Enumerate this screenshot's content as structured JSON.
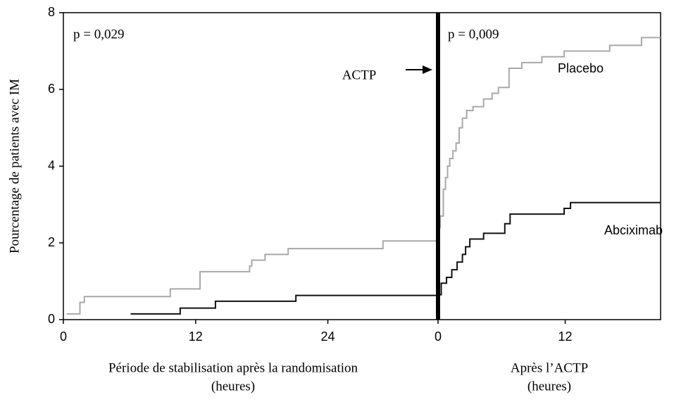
{
  "chart_data": [
    {
      "type": "line",
      "step": true,
      "annotation": "p = 0,029",
      "arrow_label": "ACTP",
      "y_label": "Pourcentage de patients avec IM",
      "x_label": [
        "Période de stabilisation après la randomisation",
        "(heures)"
      ],
      "xlim": [
        0,
        34
      ],
      "xticks": [
        0,
        12,
        24
      ],
      "ylim": [
        0,
        8
      ],
      "yticks": [
        0,
        2,
        4,
        6,
        8
      ],
      "series": [
        {
          "color": "#a8a8a8",
          "x": [
            0.3,
            1.5,
            1.9,
            9.7,
            12.4,
            16.9,
            17.1,
            18.3,
            20.4,
            29,
            34
          ],
          "values": [
            0.15,
            0.45,
            0.6,
            0.8,
            1.25,
            1.4,
            1.55,
            1.7,
            1.85,
            2.05,
            2.05
          ]
        },
        {
          "color": "#111111",
          "x": [
            6.1,
            10.6,
            13.8,
            21.1,
            34
          ],
          "values": [
            0.15,
            0.3,
            0.48,
            0.63,
            0.63
          ]
        }
      ]
    },
    {
      "type": "line",
      "step": true,
      "annotation": "p = 0,009",
      "x_label": [
        "Après l’ACTP",
        "(heures)"
      ],
      "xlim": [
        0,
        21
      ],
      "xticks": [
        0,
        12
      ],
      "ylim": [
        0,
        8
      ],
      "series": [
        {
          "name": "Placebo",
          "color": "#a8a8a8",
          "x": [
            0,
            0.2,
            0.5,
            0.7,
            0.9,
            1.1,
            1.4,
            1.7,
            2.0,
            2.3,
            2.7,
            3.3,
            4.3,
            5.1,
            5.7,
            6.7,
            7.9,
            9.8,
            11.9,
            16.2,
            19.2,
            21
          ],
          "values": [
            2.4,
            2.7,
            3.4,
            3.7,
            4.0,
            4.2,
            4.4,
            4.6,
            5.0,
            5.25,
            5.45,
            5.55,
            5.75,
            5.9,
            6.05,
            6.55,
            6.7,
            6.85,
            7.0,
            7.15,
            7.35,
            7.35
          ]
        },
        {
          "name": "Abciximab",
          "color": "#111111",
          "x": [
            0,
            0.3,
            0.8,
            1.3,
            1.8,
            2.3,
            2.6,
            3,
            4.3,
            6.3,
            6.8,
            11.9,
            12.5,
            21
          ],
          "values": [
            0.65,
            0.95,
            1.1,
            1.3,
            1.5,
            1.7,
            1.9,
            2.1,
            2.25,
            2.5,
            2.75,
            2.9,
            3.05,
            3.05
          ]
        }
      ]
    }
  ]
}
